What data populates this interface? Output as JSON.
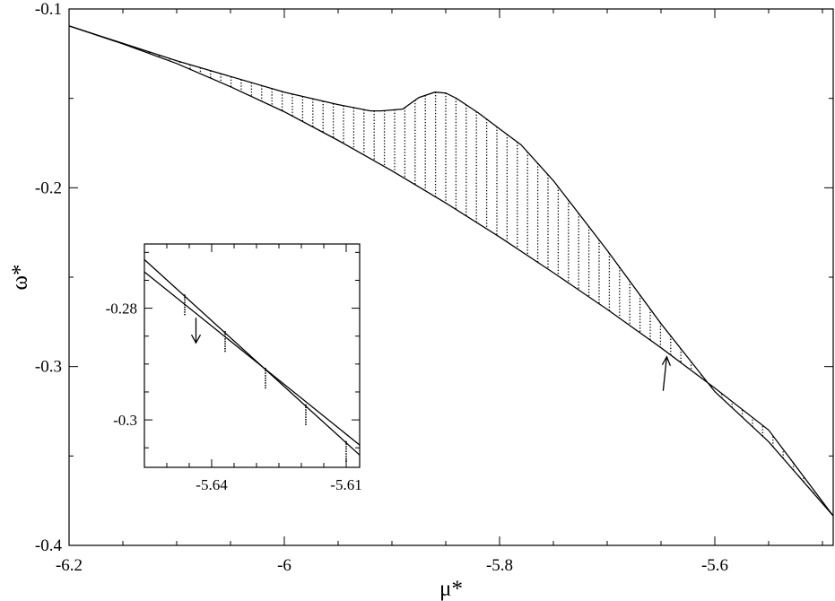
{
  "chart_data": {
    "type": "line",
    "title": "",
    "xlabel": "μ*",
    "ylabel": "ω*",
    "xlim": [
      -6.2,
      -5.49
    ],
    "ylim": [
      -0.4,
      -0.1
    ],
    "x_ticks": [
      -6.2,
      -6,
      -5.8,
      -5.6
    ],
    "x_tick_labels": [
      "-6.2",
      "-6",
      "-5.8",
      "-5.6"
    ],
    "y_ticks": [
      -0.1,
      -0.2,
      -0.3,
      -0.4
    ],
    "y_tick_labels": [
      "-0.1",
      "-0.2",
      "-0.3",
      "-0.4"
    ],
    "grid": false,
    "series": [
      {
        "x": [
          -6.2,
          -6.15,
          -6.1,
          -6.05,
          -6.0,
          -5.95,
          -5.9,
          -5.85,
          -5.8,
          -5.75,
          -5.7,
          -5.65,
          -5.6,
          -5.55,
          -5.49
        ],
        "y": [
          -0.1095,
          -0.1195,
          -0.1305,
          -0.1435,
          -0.1575,
          -0.1735,
          -0.1905,
          -0.2085,
          -0.2275,
          -0.2475,
          -0.268,
          -0.2895,
          -0.312,
          -0.3355,
          -0.3835
        ]
      },
      {
        "x": [
          -6.2,
          -6.1,
          -6.0,
          -5.95,
          -5.92,
          -5.91,
          -5.89,
          -5.875,
          -5.86,
          -5.85,
          -5.84,
          -5.82,
          -5.8,
          -5.78,
          -5.75,
          -5.7,
          -5.65,
          -5.6,
          -5.55,
          -5.49
        ],
        "y": [
          -0.1095,
          -0.129,
          -0.1465,
          -0.1535,
          -0.157,
          -0.157,
          -0.156,
          -0.1495,
          -0.1465,
          -0.147,
          -0.15,
          -0.158,
          -0.167,
          -0.176,
          -0.196,
          -0.235,
          -0.276,
          -0.314,
          -0.342,
          -0.3835
        ]
      }
    ],
    "inset": {
      "xlim": [
        -5.655,
        -5.607
      ],
      "ylim": [
        -0.3085,
        -0.2685
      ],
      "x_ticks": [
        -5.64,
        -5.61
      ],
      "x_tick_labels": [
        "-5.64",
        "-5.61"
      ],
      "y_ticks": [
        -0.28,
        -0.3
      ],
      "y_tick_labels": [
        "-0.28",
        "-0.3"
      ],
      "series": [
        {
          "x": [
            -5.655,
            -5.607
          ],
          "y": [
            -0.2713,
            -0.3063
          ]
        },
        {
          "x": [
            -5.655,
            -5.607
          ],
          "y": [
            -0.2735,
            -0.3045
          ]
        }
      ],
      "marker_x": [
        -5.646,
        -5.637,
        -5.628,
        -5.619,
        -5.61
      ]
    },
    "arrows": [
      {
        "x": -5.643,
        "y": -0.2925,
        "direction": "up"
      }
    ]
  }
}
